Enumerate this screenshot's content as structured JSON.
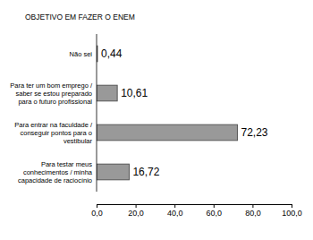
{
  "chart_data": {
    "type": "bar",
    "orientation": "horizontal",
    "title": "OBJETIVO EM FAZER O ENEM",
    "categories": [
      "Não sei",
      "Para ter um bom emprego / saber se estou preparado para o futuro profissional",
      "Para entrar na faculdade / conseguir pontos para o vestibular",
      "Para testar meus conhecimentos / minha capacidade de raciocínio"
    ],
    "values": [
      0.44,
      10.61,
      72.23,
      16.72
    ],
    "value_labels": [
      "0,44",
      "10,61",
      "72,23",
      "16,72"
    ],
    "data_labels": true,
    "color": "#999999",
    "xlim": [
      0,
      100
    ],
    "xticks": [
      {
        "value": 0,
        "label": "0,0"
      },
      {
        "value": 20,
        "label": "20,0"
      },
      {
        "value": 40,
        "label": "40,0"
      },
      {
        "value": 60,
        "label": "60,0"
      },
      {
        "value": 80,
        "label": "80,0"
      },
      {
        "value": 100,
        "label": "100,0"
      }
    ],
    "grid": false
  }
}
